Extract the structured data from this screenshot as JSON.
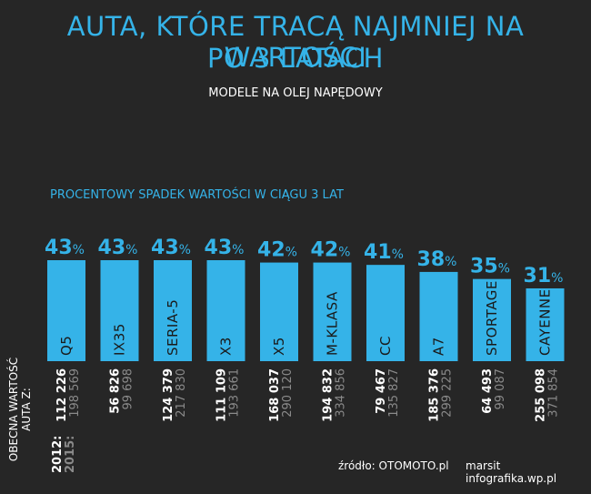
{
  "header": {
    "title_line1": "AUTA, KTÓRE TRACĄ NAJMNIEJ NA WARTOŚCI",
    "title_line2": "PO 3 LATACH",
    "subtitle": "MODELE NA OLEJ NAPĘDOWY"
  },
  "footer": {
    "source": "źródło: OTOMOTO.pl",
    "credit": "marsit infografika.wp.pl"
  },
  "axis_label": {
    "line1": "OBECNA WARTOŚĆ",
    "line2": "AUTA Z:"
  },
  "colors": {
    "background": "#262626",
    "accent": "#35b3e8",
    "text": "#ffffff",
    "muted": "#8a8a8a"
  },
  "chart_data": {
    "type": "bar",
    "title": "PROCENTOWY SPADEK WARTOŚCI W CIĄGU 3 LAT",
    "unit": "%",
    "ylim": [
      0,
      43
    ],
    "categories": [
      "Q5",
      "IX35",
      "SERIA-5",
      "X3",
      "X5",
      "M-KLASA",
      "CC",
      "A7",
      "SPORTAGE",
      "CAYENNE"
    ],
    "values": [
      43,
      43,
      43,
      43,
      42,
      42,
      41,
      38,
      35,
      31
    ],
    "value_labels": [
      "43",
      "43",
      "43",
      "43",
      "42",
      "42",
      "41",
      "38",
      "35",
      "31"
    ],
    "year_labels": [
      "2012:",
      "2015:"
    ],
    "values_2012": [
      "112 226",
      "56 826",
      "124 379",
      "111 109",
      "168 037",
      "194 832",
      "79 467",
      "185 376",
      "64 493",
      "255 098"
    ],
    "values_2015": [
      "198 569",
      "99 698",
      "217 830",
      "193 661",
      "290 120",
      "334 856",
      "135 827",
      "299 225",
      "99 087",
      "371 854"
    ]
  }
}
